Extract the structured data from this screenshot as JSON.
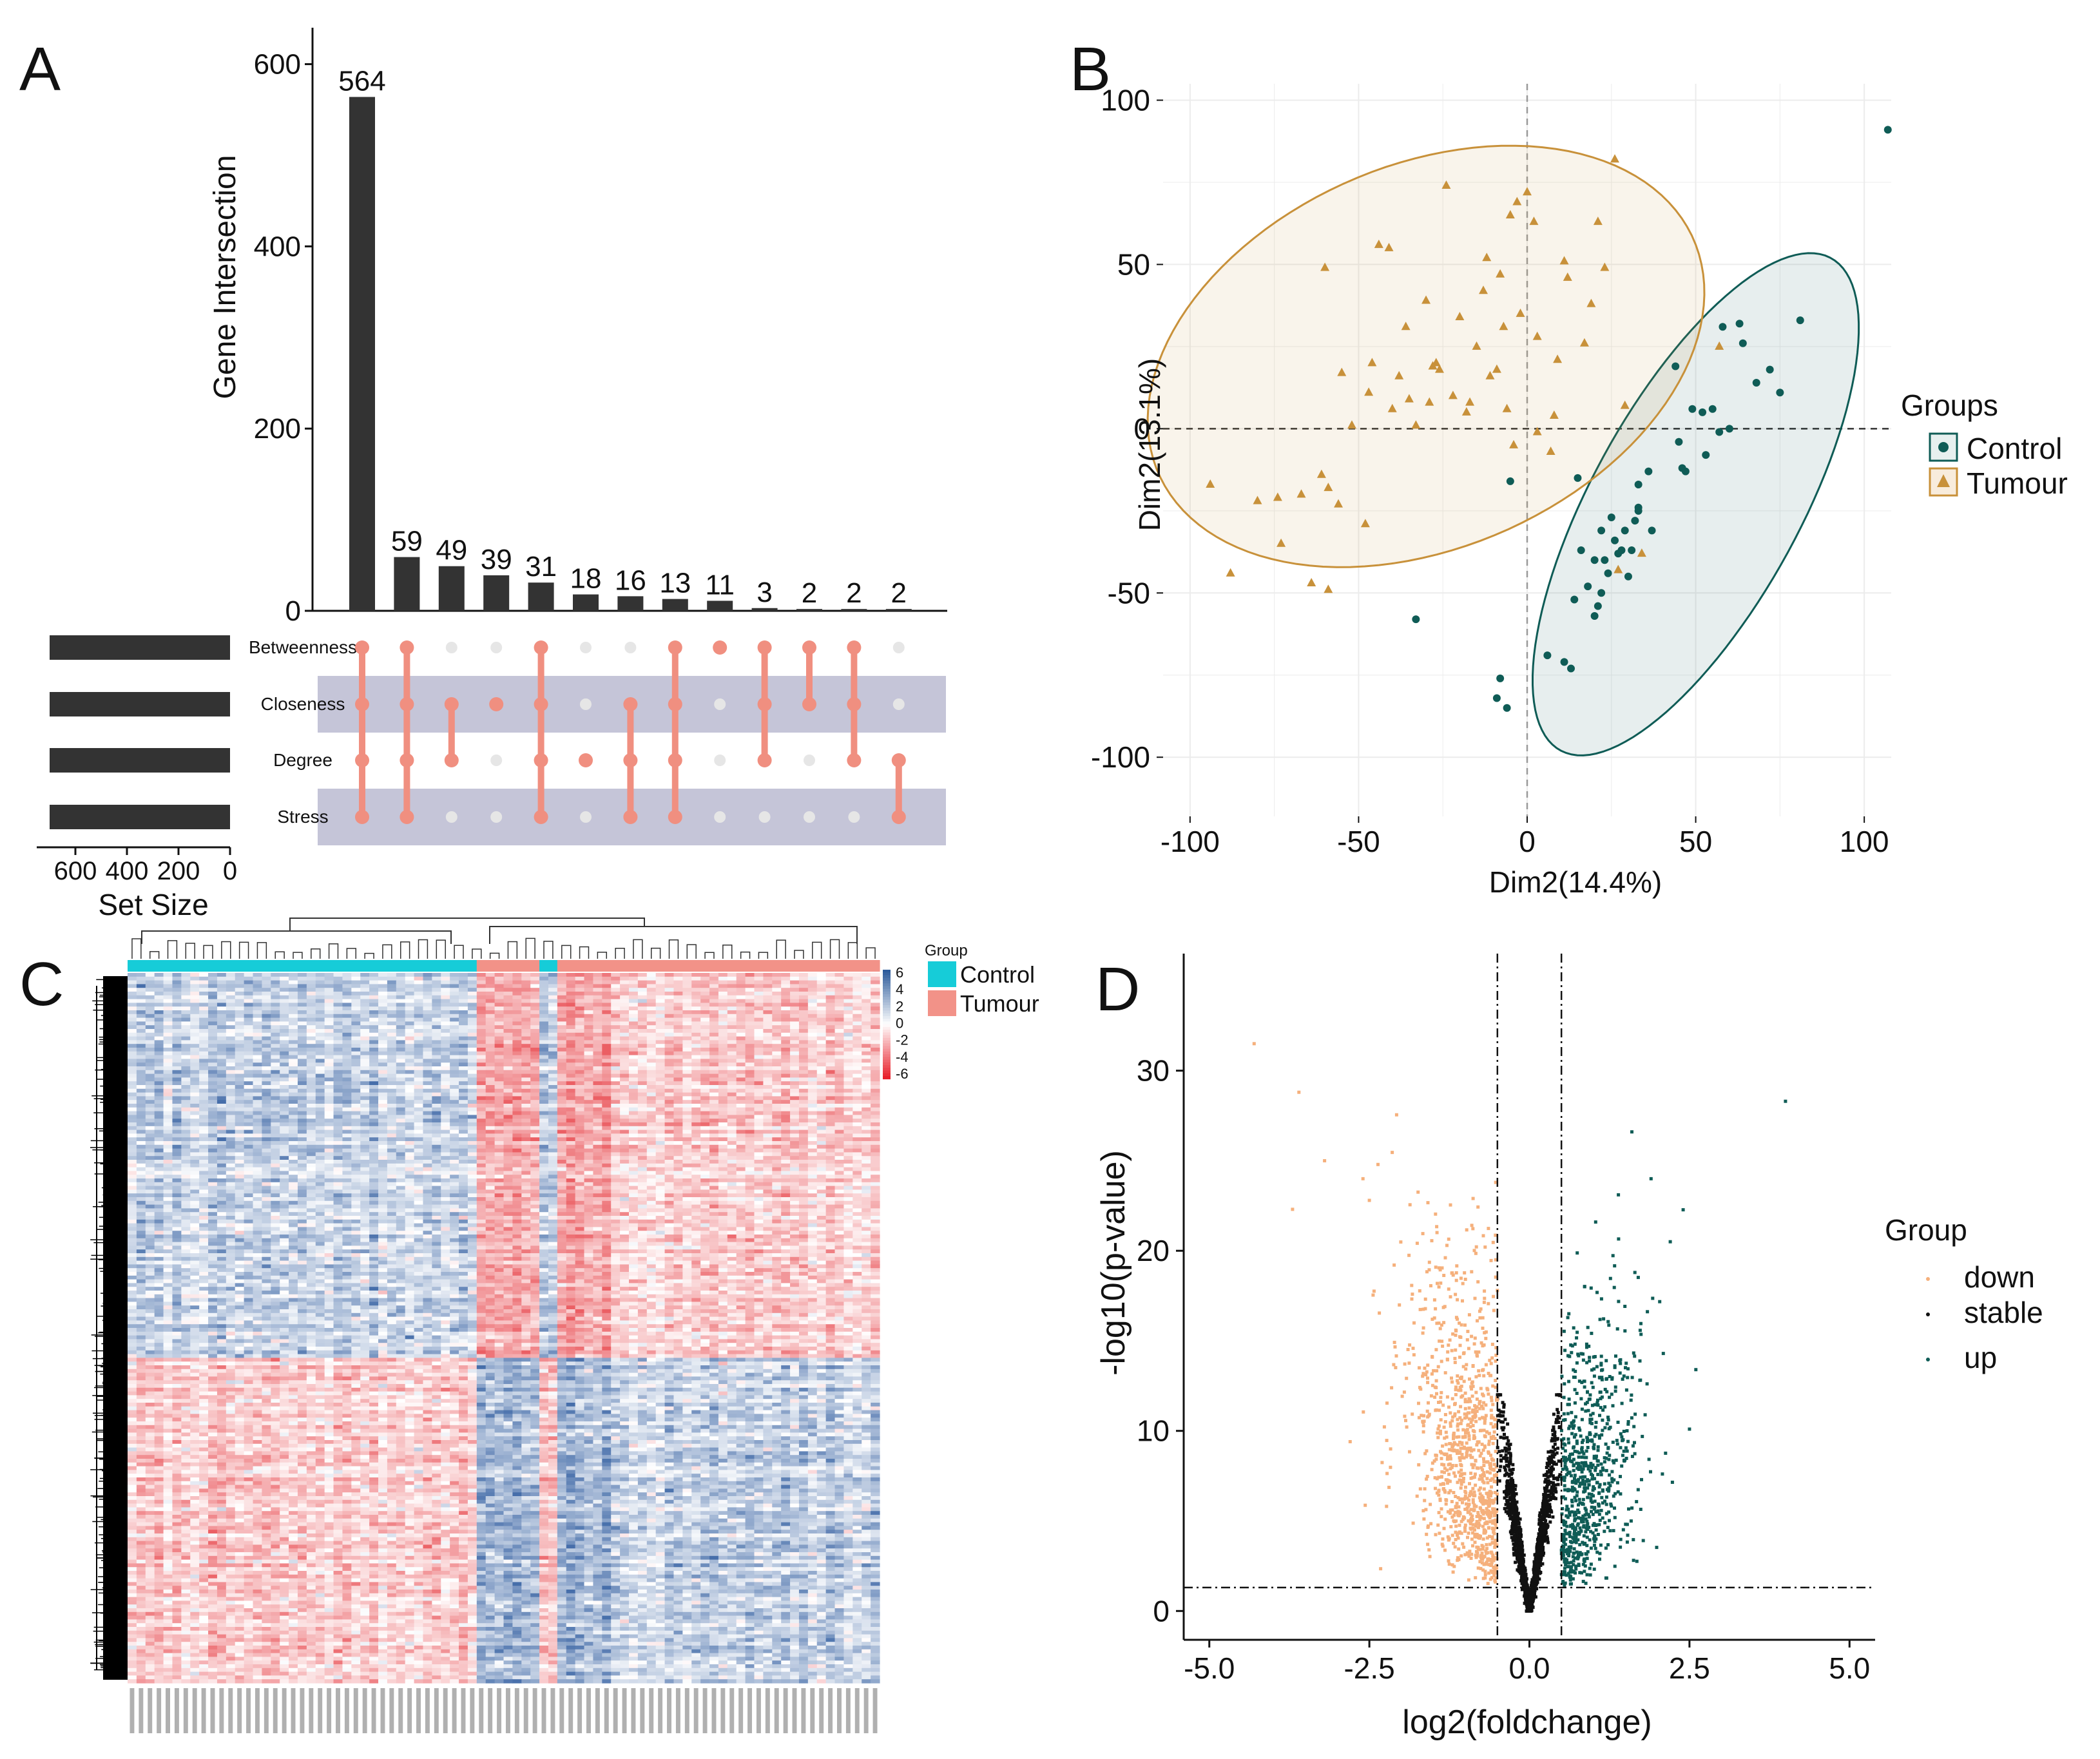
{
  "panels": {
    "A": {
      "letter": "A"
    },
    "B": {
      "letter": "B"
    },
    "C": {
      "letter": "C"
    },
    "D": {
      "letter": "D"
    }
  },
  "chart_data": [
    {
      "id": "A",
      "type": "bar",
      "subtype": "upset",
      "ylabel": "Gene Intersection",
      "ylim": [
        0,
        640
      ],
      "yticks": [
        0,
        200,
        400,
        600
      ],
      "values": [
        564,
        59,
        49,
        39,
        31,
        18,
        16,
        13,
        11,
        3,
        2,
        2,
        2
      ],
      "sets": [
        "Betweenness",
        "Closeness",
        "Degree",
        "Stress"
      ],
      "set_size_label": "Set Size",
      "set_size_ticks": [
        600,
        400,
        200,
        0
      ],
      "set_sizes": [
        700,
        700,
        700,
        700
      ],
      "set_size_max": 750,
      "membership": [
        [
          0,
          1,
          2,
          3
        ],
        [
          0,
          1,
          2,
          3
        ],
        [
          1,
          2
        ],
        [
          1
        ],
        [
          0,
          1,
          2,
          3
        ],
        [
          2
        ],
        [
          1,
          2,
          3
        ],
        [
          0,
          1,
          2,
          3
        ],
        [
          0
        ],
        [
          0,
          1,
          2
        ],
        [
          0,
          1
        ],
        [
          0,
          1,
          2
        ],
        [
          2,
          3
        ]
      ],
      "bar_color": "#333333",
      "dot_color": "#f08f80",
      "inactive_dot_color": "#e6e6e6",
      "band_color": "#c5c5d8"
    },
    {
      "id": "B",
      "type": "scatter",
      "xlabel": "Dim2(14.4%)",
      "ylabel": "Dim2(13.1%)",
      "xlim": [
        -108,
        108
      ],
      "ylim": [
        -118,
        105
      ],
      "xticks": [
        -100,
        -50,
        0,
        50,
        100
      ],
      "yticks": [
        -100,
        -50,
        0,
        50,
        100
      ],
      "legend_title": "Groups",
      "series": [
        {
          "name": "Control",
          "color": "#0f5c56",
          "marker": "circle",
          "ellipse": {
            "cx": 50,
            "cy": -23,
            "rx": 85,
            "ry": 31,
            "angle": -62
          },
          "points": [
            [
              107,
              91
            ],
            [
              81,
              33
            ],
            [
              75,
              11
            ],
            [
              72,
              18
            ],
            [
              68,
              14
            ],
            [
              64,
              26
            ],
            [
              63,
              32
            ],
            [
              60,
              0
            ],
            [
              58,
              31
            ],
            [
              57,
              -1
            ],
            [
              55,
              6
            ],
            [
              53,
              -8
            ],
            [
              52,
              5
            ],
            [
              49,
              6
            ],
            [
              47,
              -13
            ],
            [
              46,
              -12
            ],
            [
              45,
              -4
            ],
            [
              44,
              19
            ],
            [
              37,
              -31
            ],
            [
              36,
              -13
            ],
            [
              33,
              -17
            ],
            [
              33,
              -24
            ],
            [
              33,
              -25
            ],
            [
              32,
              -28
            ],
            [
              31,
              -37
            ],
            [
              30,
              -45
            ],
            [
              29,
              -31
            ],
            [
              28,
              -37
            ],
            [
              27,
              -38
            ],
            [
              26,
              -34
            ],
            [
              25,
              -27
            ],
            [
              24,
              -44
            ],
            [
              23,
              -40
            ],
            [
              22,
              -31
            ],
            [
              22,
              -50
            ],
            [
              21,
              -54
            ],
            [
              20,
              -40
            ],
            [
              20,
              -57
            ],
            [
              18,
              -48
            ],
            [
              16,
              -37
            ],
            [
              15,
              -15
            ],
            [
              14,
              -52
            ],
            [
              13,
              -73
            ],
            [
              11,
              -71
            ],
            [
              6,
              -69
            ],
            [
              -5,
              -16
            ],
            [
              -6,
              -85
            ],
            [
              -8,
              -76
            ],
            [
              -9,
              -82
            ],
            [
              -33,
              -58
            ]
          ]
        },
        {
          "name": "Tumour",
          "color": "#c8913a",
          "marker": "triangle",
          "ellipse": {
            "cx": -30,
            "cy": 22,
            "rx": 87,
            "ry": 58,
            "angle": -25
          },
          "points": [
            [
              -94,
              -17
            ],
            [
              -88,
              -44
            ],
            [
              -80,
              -22
            ],
            [
              -74,
              -21
            ],
            [
              -73,
              -35
            ],
            [
              -67,
              -20
            ],
            [
              -64,
              -47
            ],
            [
              -61,
              -14
            ],
            [
              -59,
              -18
            ],
            [
              -59,
              -49
            ],
            [
              -56,
              -23
            ],
            [
              -60,
              49
            ],
            [
              -55,
              17
            ],
            [
              -52,
              1
            ],
            [
              -48,
              -29
            ],
            [
              -47,
              11
            ],
            [
              -46,
              20
            ],
            [
              -44,
              56
            ],
            [
              -41,
              55
            ],
            [
              -40,
              6
            ],
            [
              -38,
              16
            ],
            [
              -36,
              31
            ],
            [
              -35,
              9
            ],
            [
              -33,
              1
            ],
            [
              -30,
              39
            ],
            [
              -29,
              8
            ],
            [
              -28,
              19
            ],
            [
              -27,
              20
            ],
            [
              -26,
              18
            ],
            [
              -24,
              74
            ],
            [
              -22,
              10
            ],
            [
              -20,
              34
            ],
            [
              -18,
              5
            ],
            [
              -17,
              8
            ],
            [
              -15,
              25
            ],
            [
              -13,
              42
            ],
            [
              -12,
              52
            ],
            [
              -11,
              16
            ],
            [
              -9,
              18
            ],
            [
              -8,
              47
            ],
            [
              -7,
              31
            ],
            [
              -6,
              6
            ],
            [
              -5,
              65
            ],
            [
              -4,
              -5
            ],
            [
              -3,
              69
            ],
            [
              -2,
              35
            ],
            [
              0,
              72
            ],
            [
              2,
              63
            ],
            [
              3,
              28
            ],
            [
              3,
              -1
            ],
            [
              7,
              -7
            ],
            [
              8,
              4
            ],
            [
              9,
              21
            ],
            [
              11,
              51
            ],
            [
              12,
              46
            ],
            [
              17,
              26
            ],
            [
              19,
              38
            ],
            [
              21,
              63
            ],
            [
              23,
              49
            ],
            [
              26,
              82
            ],
            [
              27,
              -43
            ],
            [
              29,
              7
            ],
            [
              34,
              -38
            ],
            [
              57,
              25
            ]
          ]
        }
      ]
    },
    {
      "id": "C",
      "type": "heatmap",
      "legend_title": "Group",
      "groups": [
        {
          "name": "Control",
          "color": "#16ccd8"
        },
        {
          "name": "Tumour",
          "color": "#f29288"
        }
      ],
      "color_scale_ticks": [
        "6",
        "4",
        "2",
        "0",
        "-2",
        "-4",
        "-6"
      ],
      "scale_high_color": "#2e5c9c",
      "scale_low_color": "#e8212b"
    },
    {
      "id": "D",
      "type": "scatter",
      "subtype": "volcano",
      "xlabel": "log2(foldchange)",
      "ylabel": "-log10(p-value)",
      "xlim": [
        -5.4,
        5.4
      ],
      "ylim": [
        -1.6,
        36.5
      ],
      "xticks": [
        "-5.0",
        "-2.5",
        "0.0",
        "2.5",
        "5.0"
      ],
      "yticks": [
        "0",
        "10",
        "20",
        "30"
      ],
      "fc_cutoff": 0.5,
      "p_cutoff": 1.3,
      "legend_title": "Group",
      "series": [
        {
          "name": "down",
          "color": "#f5b07c"
        },
        {
          "name": "stable",
          "color": "#111111"
        },
        {
          "name": "up",
          "color": "#0f5c56"
        }
      ]
    }
  ]
}
